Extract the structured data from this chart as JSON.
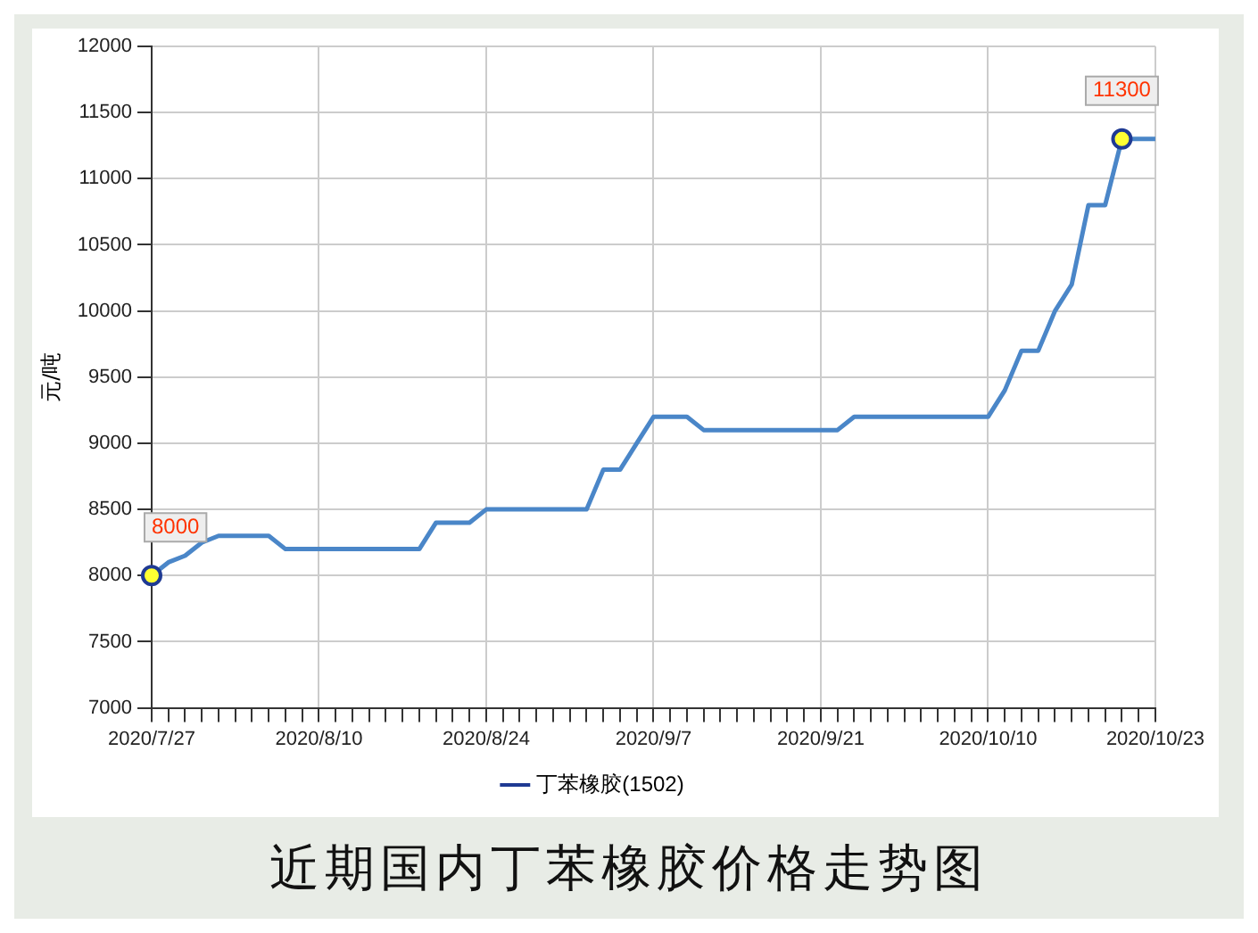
{
  "chart_data": {
    "type": "line",
    "title": "近期国内丁苯橡胶价格走势图",
    "ylabel": "元/吨",
    "categories": [
      "2020/7/27",
      null,
      null,
      null,
      null,
      null,
      null,
      null,
      null,
      null,
      "2020/8/10",
      null,
      null,
      null,
      null,
      null,
      null,
      null,
      null,
      null,
      "2020/8/24",
      null,
      null,
      null,
      null,
      null,
      null,
      null,
      null,
      null,
      "2020/9/7",
      null,
      null,
      null,
      null,
      null,
      null,
      null,
      null,
      null,
      "2020/9/21",
      null,
      null,
      null,
      null,
      null,
      null,
      null,
      null,
      null,
      "2020/10/10",
      null,
      null,
      null,
      null,
      null,
      null,
      null,
      null,
      null,
      "2020/10/23"
    ],
    "series": [
      {
        "name": "丁苯橡胶(1502)",
        "color": "#4a86c8",
        "values": [
          8000,
          8100,
          8150,
          8250,
          8300,
          8300,
          8300,
          8300,
          8200,
          8200,
          8200,
          8200,
          8200,
          8200,
          8200,
          8200,
          8200,
          8400,
          8400,
          8400,
          8500,
          8500,
          8500,
          8500,
          8500,
          8500,
          8500,
          8800,
          8800,
          9000,
          9200,
          9200,
          9200,
          9100,
          9100,
          9100,
          9100,
          9100,
          9100,
          9100,
          9100,
          9100,
          9200,
          9200,
          9200,
          9200,
          9200,
          9200,
          9200,
          9200,
          9200,
          9400,
          9700,
          9700,
          10000,
          10200,
          10800,
          10800,
          11300,
          11300,
          11300
        ],
        "value_labels": [
          "8000",
          null,
          null,
          null,
          null,
          null,
          null,
          null,
          null,
          null,
          null,
          null,
          null,
          null,
          null,
          null,
          null,
          null,
          null,
          null,
          null,
          null,
          null,
          null,
          null,
          null,
          null,
          null,
          null,
          null,
          null,
          null,
          null,
          null,
          null,
          null,
          null,
          null,
          null,
          null,
          null,
          null,
          null,
          null,
          null,
          null,
          null,
          null,
          null,
          null,
          null,
          null,
          null,
          null,
          null,
          null,
          null,
          null,
          "11300",
          null,
          null
        ]
      }
    ],
    "ylim": [
      7000,
      12000
    ],
    "yticks": [
      7000,
      7500,
      8000,
      8500,
      9000,
      9500,
      10000,
      10500,
      11000,
      11500,
      12000
    ],
    "grid": true,
    "legend": "bottom"
  }
}
